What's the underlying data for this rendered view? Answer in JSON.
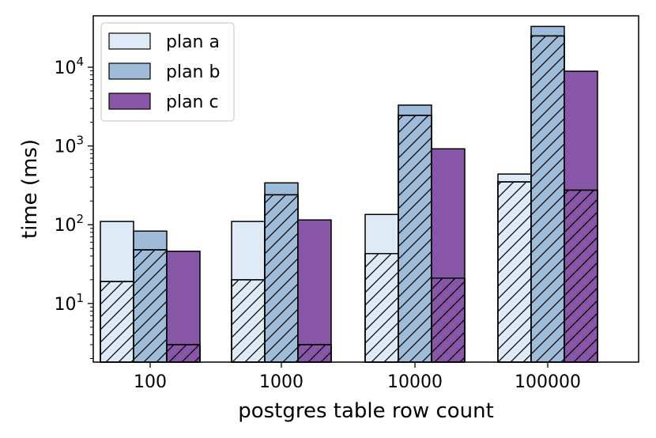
{
  "chart_data": {
    "type": "bar",
    "stacked_overlay": true,
    "xlabel": "postgres table row count",
    "ylabel": "time (ms)",
    "yscale": "log",
    "ylim": [
      1.8,
      45000
    ],
    "categories": [
      "100",
      "1000",
      "10000",
      "100000"
    ],
    "y_ticks": [
      {
        "value": 10,
        "base": "10",
        "exp": "1"
      },
      {
        "value": 100,
        "base": "10",
        "exp": "2"
      },
      {
        "value": 1000,
        "base": "10",
        "exp": "3"
      },
      {
        "value": 10000,
        "base": "10",
        "exp": "4"
      }
    ],
    "legend_position": "top-left",
    "hatched_part_description": "hatched lower segment",
    "series": [
      {
        "name": "plan a",
        "color": "#deebf7",
        "total": [
          110,
          110,
          135,
          440
        ],
        "hatched": [
          19,
          20,
          43,
          350
        ]
      },
      {
        "name": "plan b",
        "color": "#9ebcda",
        "total": [
          83,
          340,
          3300,
          33000
        ],
        "hatched": [
          48,
          240,
          2450,
          25000
        ]
      },
      {
        "name": "plan c",
        "color": "#8856a7",
        "total": [
          46,
          115,
          920,
          8900
        ],
        "hatched": [
          3,
          3,
          21,
          275
        ]
      }
    ]
  }
}
